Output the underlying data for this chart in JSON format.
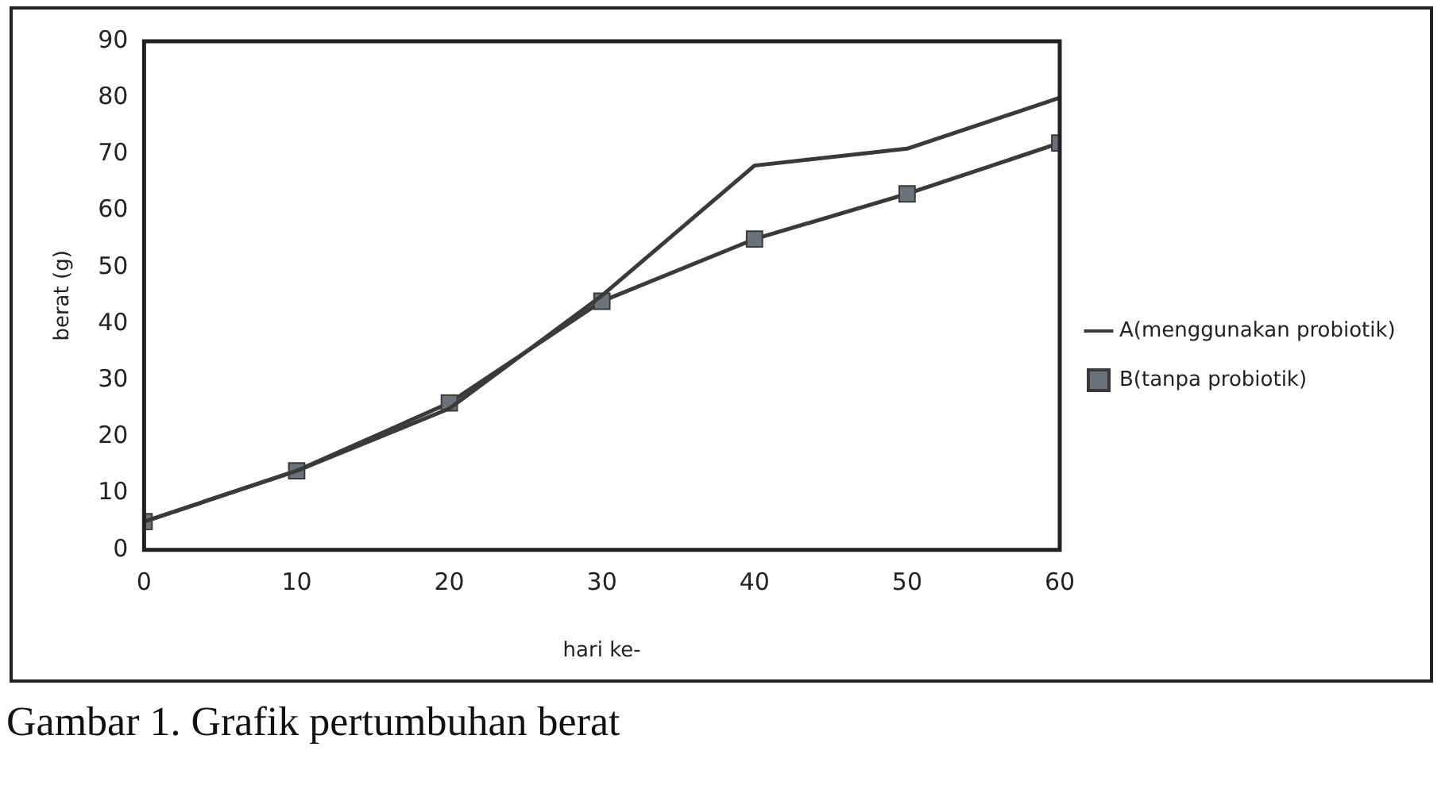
{
  "chart_data": {
    "type": "line",
    "xlabel": "hari ke-",
    "ylabel": "berat (g)",
    "x": [
      0,
      10,
      20,
      30,
      40,
      50,
      60
    ],
    "series": [
      {
        "name": "A(menggunakan probiotik)",
        "color": "#3a3a3a",
        "marker": "none",
        "values": [
          5,
          14,
          25,
          45,
          68,
          71,
          80
        ]
      },
      {
        "name": "B(tanpa probiotik)",
        "color": "#3a3a3a",
        "marker": "square",
        "values": [
          5,
          14,
          26,
          44,
          55,
          63,
          72
        ]
      }
    ],
    "xlim": [
      0,
      60
    ],
    "xticks": [
      0,
      10,
      20,
      30,
      40,
      50,
      60
    ],
    "ylim": [
      0,
      90
    ],
    "yticks": [
      0,
      10,
      20,
      30,
      40,
      50,
      60,
      70,
      80,
      90
    ],
    "grid": false,
    "legend": "right",
    "line_style": "solid",
    "annotations": [
      "Gambar 1. Grafik pertumbuhan berat"
    ]
  }
}
